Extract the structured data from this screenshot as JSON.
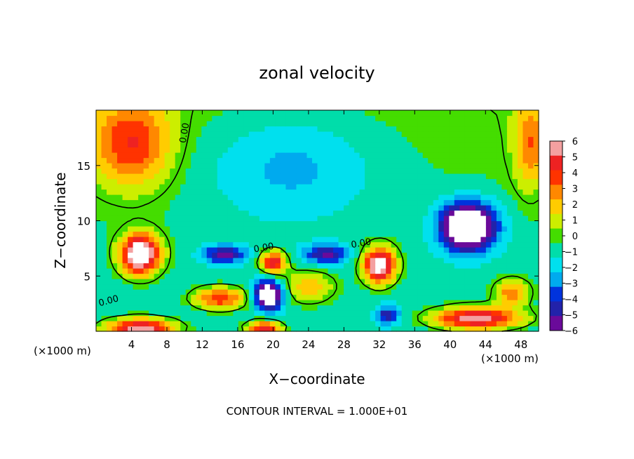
{
  "chart_data": {
    "type": "heatmap",
    "title": "zonal velocity",
    "xlabel": "X−coordinate",
    "ylabel": "Z−coordinate",
    "x_unit": "(×1000 m)",
    "x_unit_right": "(×1000 m)",
    "xlim": [
      0,
      50
    ],
    "ylim": [
      0,
      20
    ],
    "x_ticks": [
      4,
      8,
      12,
      16,
      20,
      24,
      28,
      32,
      36,
      40,
      44,
      48
    ],
    "y_ticks": [
      5,
      10,
      15
    ],
    "colorbar": {
      "ticks": [
        6,
        5,
        4,
        3,
        2,
        1,
        0,
        -1,
        -2,
        -3,
        -4,
        -5,
        -6
      ],
      "labels": [
        "6",
        "5",
        "4",
        "3",
        "2",
        "1",
        "0",
        "−1",
        "−2",
        "−3",
        "−4",
        "−5",
        "−6"
      ],
      "colors": [
        "#f4a0a0",
        "#ee2222",
        "#ff3300",
        "#ff8800",
        "#ffcc00",
        "#ccee00",
        "#44dd00",
        "#00ddaa",
        "#00e0ee",
        "#00aaee",
        "#0033dd",
        "#2222aa",
        "#6a0a9a"
      ],
      "range": [
        -6,
        6
      ]
    },
    "contour_labels": [
      {
        "text": "0.00",
        "x": 10.3,
        "y": 17.9,
        "angle": -80
      },
      {
        "text": "0.00",
        "x": 1.5,
        "y": 2.5,
        "angle": -15
      },
      {
        "text": "0.00",
        "x": 19.0,
        "y": 7.3,
        "angle": -10
      },
      {
        "text": "0.00",
        "x": 30.0,
        "y": 7.7,
        "angle": -10
      }
    ],
    "annotation": "CONTOUR INTERVAL = 1.000E+01",
    "features": [
      {
        "x": 4,
        "y": 17,
        "value": 4.5,
        "sx": 4.5,
        "sy": 4
      },
      {
        "x": 49,
        "y": 17,
        "value": 3.5,
        "sx": 1.8,
        "sy": 4
      },
      {
        "x": 22,
        "y": 15,
        "value": -2.2,
        "sx": 10,
        "sy": 5
      },
      {
        "x": 5,
        "y": 7,
        "value": 9,
        "sx": 2.2,
        "sy": 1.8
      },
      {
        "x": 42,
        "y": 9.5,
        "value": -9,
        "sx": 3.2,
        "sy": 2.2
      },
      {
        "x": 14,
        "y": 3,
        "value": 5,
        "sx": 3,
        "sy": 1
      },
      {
        "x": 19.5,
        "y": 3.3,
        "value": -8,
        "sx": 1.6,
        "sy": 1.3
      },
      {
        "x": 20,
        "y": 6.3,
        "value": 6,
        "sx": 1.4,
        "sy": 1
      },
      {
        "x": 14.5,
        "y": 7,
        "value": -5,
        "sx": 2.5,
        "sy": 0.8
      },
      {
        "x": 26,
        "y": 7,
        "value": -4.5,
        "sx": 2.5,
        "sy": 0.9
      },
      {
        "x": 32,
        "y": 6,
        "value": 8,
        "sx": 1.8,
        "sy": 1.6
      },
      {
        "x": 43,
        "y": 1.2,
        "value": 7,
        "sx": 5,
        "sy": 1
      },
      {
        "x": 5,
        "y": 0.3,
        "value": 7,
        "sx": 4,
        "sy": 0.9
      },
      {
        "x": 19,
        "y": 0.3,
        "value": 6,
        "sx": 2,
        "sy": 0.7
      },
      {
        "x": 33,
        "y": 1.5,
        "value": -4,
        "sx": 1.3,
        "sy": 0.8
      },
      {
        "x": 24,
        "y": 4,
        "value": 3,
        "sx": 3,
        "sy": 1.5
      },
      {
        "x": 47,
        "y": 3.5,
        "value": 4,
        "sx": 2,
        "sy": 1.2
      }
    ]
  }
}
